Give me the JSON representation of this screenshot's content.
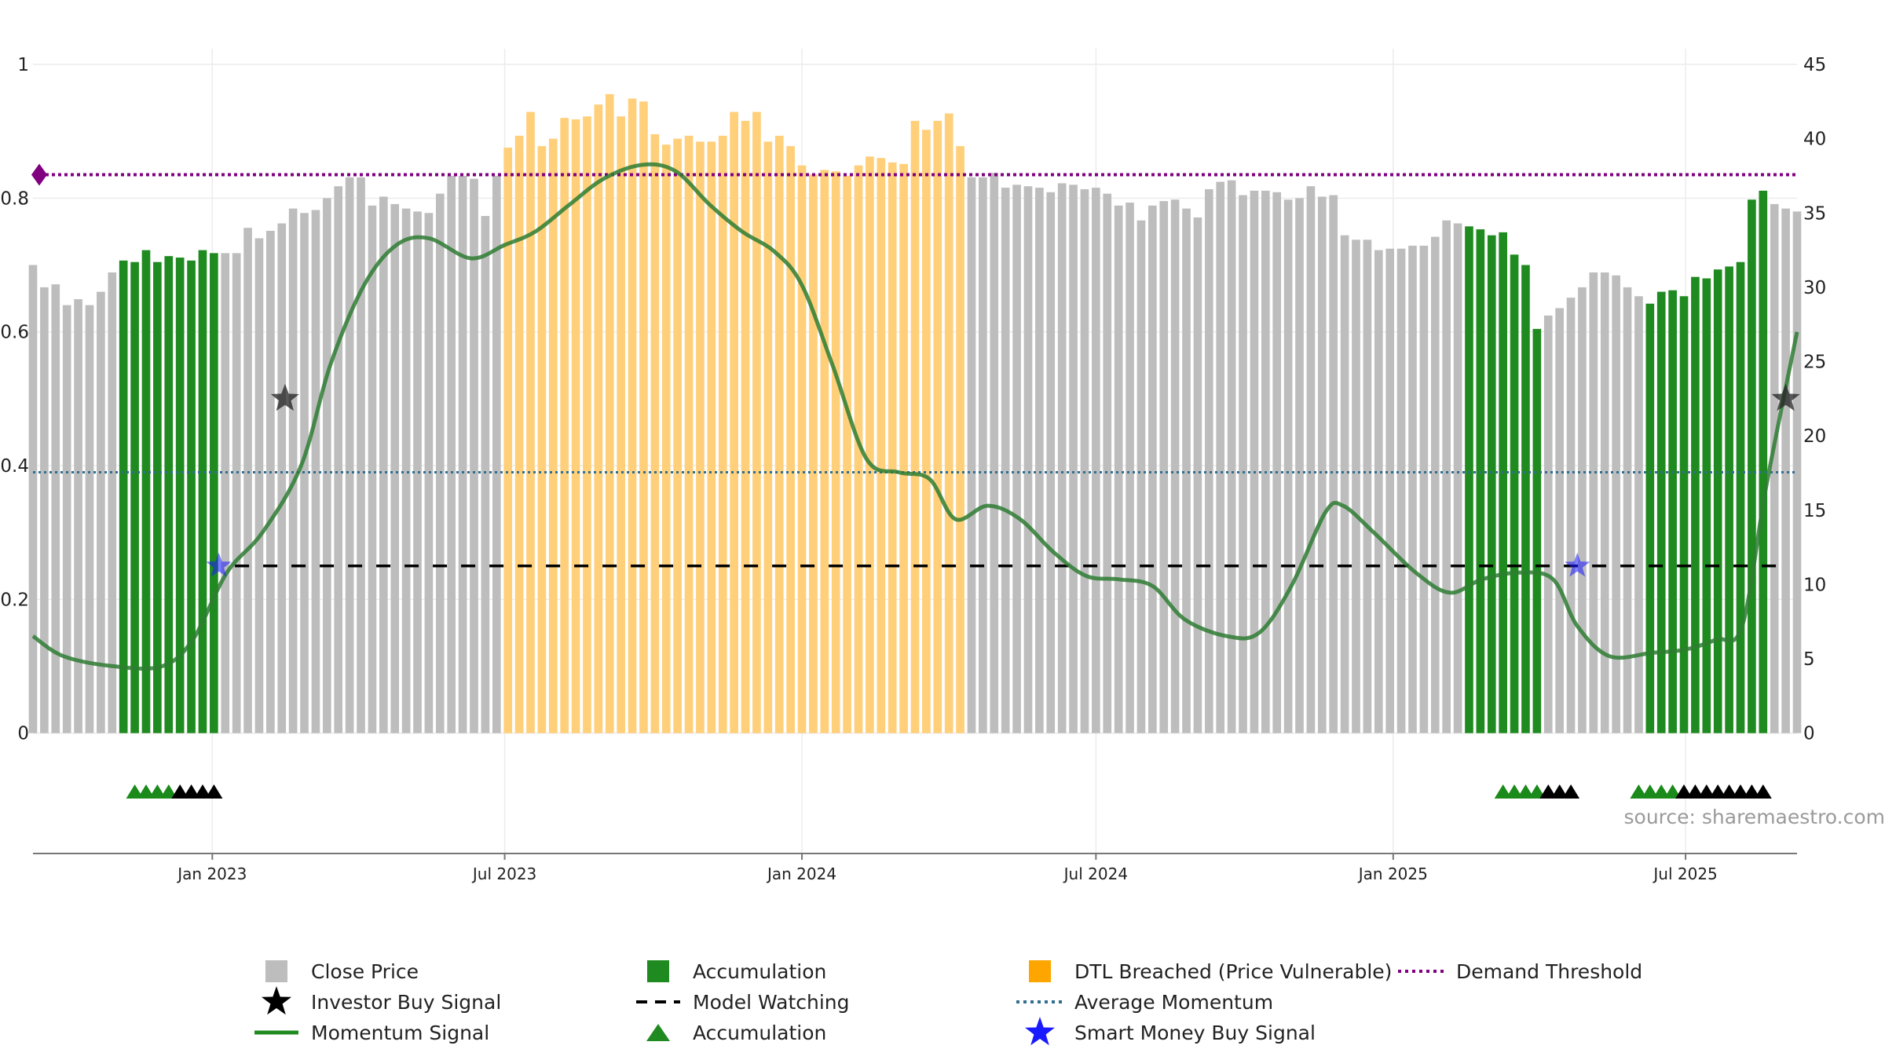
{
  "chart_data": {
    "type": "bar",
    "title": "",
    "x_axis": {
      "tick_labels": [
        "Jan 2023",
        "Jul 2023",
        "Jan 2024",
        "Jul 2024",
        "Jan 2025",
        "Jul 2025"
      ],
      "tick_dates": [
        "2023-01-01",
        "2023-07-01",
        "2024-01-01",
        "2024-07-01",
        "2025-01-01",
        "2025-07-01"
      ],
      "range": [
        "2022-09-12",
        "2025-09-08"
      ]
    },
    "y_left": {
      "range": [
        -0.18,
        1
      ],
      "tick_labels": [
        "0",
        "0.2",
        "0.4",
        "0.6",
        "0.8",
        "1"
      ],
      "tick_values": [
        0,
        0.2,
        0.4,
        0.6,
        0.8,
        1
      ]
    },
    "y_right": {
      "range": [
        -8.1,
        45
      ],
      "tick_labels": [
        "0",
        "5",
        "10",
        "15",
        "20",
        "25",
        "30",
        "35",
        "40",
        "45"
      ],
      "tick_values": [
        0,
        5,
        10,
        15,
        20,
        25,
        30,
        35,
        40,
        45
      ]
    },
    "grid": true,
    "legend_position": "bottom",
    "source_note": "source: sharemaestro.com",
    "series_colors": {
      "close": "#bdbdbd",
      "accumulation": "#1f8a1f",
      "dtl": "#ffcf7a",
      "momentum": "#2e7d32",
      "model_watching": "#000000",
      "average_momentum": "#2f6f8f",
      "demand_threshold": "#800080",
      "smart_money": "#1a1aff",
      "investor": "#000000"
    },
    "price_series": {
      "start_date": "2022-09-12",
      "interval": "weekly",
      "values": [
        31.5,
        30,
        30.2,
        28.8,
        29.2,
        28.8,
        29.7,
        31,
        31.8,
        31.7,
        32.5,
        31.7,
        32.1,
        32,
        31.8,
        32.5,
        32.3,
        32.3,
        32.3,
        34,
        33.3,
        33.8,
        34.3,
        35.3,
        35,
        35.2,
        36,
        36.8,
        37.4,
        37.4,
        35.5,
        36.1,
        35.6,
        35.3,
        35.1,
        35,
        36.3,
        37.5,
        37.5,
        37.3,
        34.8,
        37.5,
        39.4,
        40.2,
        41.8,
        39.5,
        40,
        41.4,
        41.3,
        41.5,
        42.3,
        43,
        41.5,
        42.7,
        42.5,
        40.3,
        39.6,
        40,
        40.2,
        39.8,
        39.8,
        40.2,
        41.8,
        41.2,
        41.8,
        39.8,
        40.2,
        39.5,
        38.2,
        37.6,
        37.9,
        37.8,
        37.5,
        38.2,
        38.8,
        38.7,
        38.4,
        38.3,
        41.2,
        40.6,
        41.2,
        41.7,
        39.5,
        37.4,
        37.4,
        37.7,
        36.7,
        36.9,
        36.8,
        36.7,
        36.4,
        37,
        36.9,
        36.6,
        36.7,
        36.3,
        35.5,
        35.7,
        34.5,
        35.5,
        35.8,
        35.9,
        35.3,
        34.7,
        36.6,
        37.1,
        37.2,
        36.2,
        36.5,
        36.5,
        36.4,
        35.9,
        36,
        36.8,
        36.1,
        36.2,
        33.5,
        33.2,
        33.2,
        32.5,
        32.6,
        32.6,
        32.8,
        32.8,
        33.4,
        34.5,
        34.3,
        34.1,
        33.9,
        33.5,
        33.7,
        32.2,
        31.5,
        27.2,
        28.1,
        28.6,
        29.3,
        30,
        31,
        31,
        30.8,
        30,
        29.4,
        28.9,
        29.7,
        29.8,
        29.4,
        30.7,
        30.6,
        31.2,
        31.4,
        31.7,
        35.9,
        36.5,
        35.6,
        35.3,
        35.1
      ],
      "segment_types": [
        {
          "from": 0,
          "to": 7,
          "type": "close"
        },
        {
          "from": 8,
          "to": 16,
          "type": "accumulation"
        },
        {
          "from": 17,
          "to": 41,
          "type": "close"
        },
        {
          "from": 42,
          "to": 82,
          "type": "dtl"
        },
        {
          "from": 83,
          "to": 126,
          "type": "close"
        },
        {
          "from": 127,
          "to": 133,
          "type": "accumulation"
        },
        {
          "from": 134,
          "to": 142,
          "type": "close"
        },
        {
          "from": 143,
          "to": 153,
          "type": "accumulation"
        },
        {
          "from": 154,
          "to": 158,
          "type": "close"
        }
      ]
    },
    "momentum_signal": [
      [
        "2022-09-12",
        0.145
      ],
      [
        "2022-10-01",
        0.115
      ],
      [
        "2022-11-01",
        0.1
      ],
      [
        "2022-12-01",
        0.1
      ],
      [
        "2022-12-20",
        0.14
      ],
      [
        "2023-01-10",
        0.24
      ],
      [
        "2023-02-01",
        0.3
      ],
      [
        "2023-02-25",
        0.4
      ],
      [
        "2023-03-15",
        0.55
      ],
      [
        "2023-04-05",
        0.67
      ],
      [
        "2023-04-25",
        0.73
      ],
      [
        "2023-05-15",
        0.74
      ],
      [
        "2023-06-10",
        0.71
      ],
      [
        "2023-07-01",
        0.73
      ],
      [
        "2023-07-20",
        0.75
      ],
      [
        "2023-08-10",
        0.79
      ],
      [
        "2023-09-01",
        0.83
      ],
      [
        "2023-09-25",
        0.85
      ],
      [
        "2023-10-15",
        0.84
      ],
      [
        "2023-11-05",
        0.79
      ],
      [
        "2023-11-25",
        0.75
      ],
      [
        "2023-12-15",
        0.72
      ],
      [
        "2024-01-01",
        0.67
      ],
      [
        "2024-01-20",
        0.55
      ],
      [
        "2024-02-10",
        0.41
      ],
      [
        "2024-03-01",
        0.39
      ],
      [
        "2024-03-20",
        0.38
      ],
      [
        "2024-04-05",
        0.32
      ],
      [
        "2024-04-25",
        0.34
      ],
      [
        "2024-05-15",
        0.32
      ],
      [
        "2024-06-05",
        0.27
      ],
      [
        "2024-06-25",
        0.235
      ],
      [
        "2024-07-15",
        0.23
      ],
      [
        "2024-08-05",
        0.22
      ],
      [
        "2024-08-25",
        0.17
      ],
      [
        "2024-09-20",
        0.145
      ],
      [
        "2024-10-10",
        0.15
      ],
      [
        "2024-10-30",
        0.22
      ],
      [
        "2024-11-20",
        0.33
      ],
      [
        "2024-12-01",
        0.34
      ],
      [
        "2024-12-20",
        0.3
      ],
      [
        "2025-01-15",
        0.24
      ],
      [
        "2025-02-05",
        0.21
      ],
      [
        "2025-02-25",
        0.23
      ],
      [
        "2025-03-20",
        0.24
      ],
      [
        "2025-04-10",
        0.23
      ],
      [
        "2025-04-25",
        0.16
      ],
      [
        "2025-05-15",
        0.115
      ],
      [
        "2025-06-10",
        0.12
      ],
      [
        "2025-07-01",
        0.125
      ],
      [
        "2025-07-20",
        0.14
      ],
      [
        "2025-08-05",
        0.16
      ],
      [
        "2025-08-20",
        0.37
      ],
      [
        "2025-09-08",
        0.6
      ]
    ],
    "average_momentum": 0.39,
    "demand_threshold": 0.835,
    "model_watching": {
      "value": 0.25,
      "from": "2023-01-15",
      "to": "2025-08-31"
    },
    "investor_buy_signals": [
      {
        "date": "2023-02-15",
        "value": 0.5
      },
      {
        "date": "2025-09-01",
        "value": 0.5
      }
    ],
    "smart_money_buy_signals": [
      {
        "date": "2023-01-05",
        "value": 0.25
      },
      {
        "date": "2025-04-25",
        "value": 0.25
      }
    ],
    "demand_threshold_marker": {
      "date": "2022-09-12",
      "value": 0.835
    },
    "accumulation_markers": [
      {
        "from": "2022-11-14",
        "to": "2022-12-05",
        "color": "green"
      },
      {
        "from": "2022-12-12",
        "to": "2023-01-02",
        "color": "black"
      },
      {
        "from": "2025-03-10",
        "to": "2025-03-31",
        "color": "green"
      },
      {
        "from": "2025-04-07",
        "to": "2025-04-21",
        "color": "black"
      },
      {
        "from": "2025-06-02",
        "to": "2025-06-23",
        "color": "green"
      },
      {
        "from": "2025-06-30",
        "to": "2025-08-18",
        "color": "black"
      }
    ],
    "legend": [
      {
        "label": "Close Price",
        "symbol": "square",
        "color": "#bdbdbd"
      },
      {
        "label": "Investor Buy Signal",
        "symbol": "star",
        "color": "#000000"
      },
      {
        "label": "Momentum Signal",
        "symbol": "line",
        "color": "#1f8a1f"
      },
      {
        "label": "Accumulation",
        "symbol": "square",
        "color": "#1f8a1f"
      },
      {
        "label": "Model Watching",
        "symbol": "dash",
        "color": "#000000"
      },
      {
        "label": "Accumulation",
        "symbol": "triangle",
        "color": "#1f8a1f"
      },
      {
        "label": "DTL Breached (Price Vulnerable)",
        "symbol": "square",
        "color": "#ffa500"
      },
      {
        "label": "Average Momentum",
        "symbol": "dot",
        "color": "#2f6f8f"
      },
      {
        "label": "Smart Money Buy Signal",
        "symbol": "star",
        "color": "#1a1aff"
      },
      {
        "label": "Demand Threshold",
        "symbol": "dot",
        "color": "#800080"
      }
    ]
  }
}
